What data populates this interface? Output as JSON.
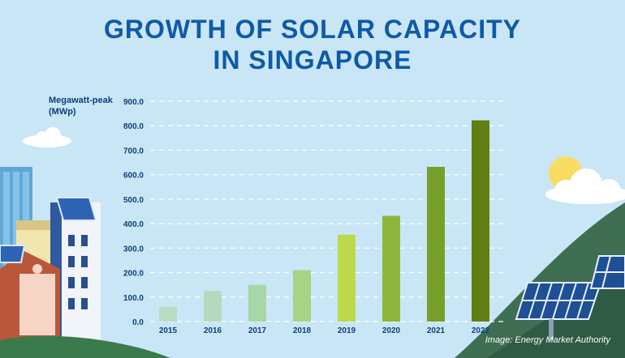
{
  "page": {
    "title_line1": "GROWTH OF SOLAR CAPACITY",
    "title_line2": "IN SINGAPORE",
    "credit": "Image: Energy Market Authority"
  },
  "chart_data": {
    "type": "bar",
    "title": "GROWTH OF SOLAR CAPACITY IN SINGAPORE",
    "ylabel_line1": "Megawatt-peak",
    "ylabel_line2": "(MWp)",
    "xlabel": "",
    "categories": [
      "2015",
      "2016",
      "2017",
      "2018",
      "2019",
      "2020",
      "2021",
      "2022"
    ],
    "values": [
      60,
      125,
      150,
      210,
      355,
      432,
      632,
      822
    ],
    "ylim": [
      0,
      900
    ],
    "yticks": [
      "0.0",
      "100.0",
      "200.0",
      "300.0",
      "400.0",
      "500.0",
      "600.0",
      "700.0",
      "800.0",
      "900.0"
    ],
    "grid": true,
    "gridstyle": "dashed",
    "bar_colors": [
      "#b7dcc0",
      "#b3dabc",
      "#a9d6a6",
      "#a6d486",
      "#bcd94b",
      "#8fb63c",
      "#77a02a",
      "#5f7e14"
    ]
  },
  "colors": {
    "background": "#c9e6f7",
    "title": "#0f5aa8",
    "axis_text": "#0c3f7a",
    "gridline": "#ffffff"
  },
  "decor": {
    "icons": [
      "cloud-icon",
      "sun-icon",
      "solar-panel-icon",
      "building-icon"
    ]
  }
}
